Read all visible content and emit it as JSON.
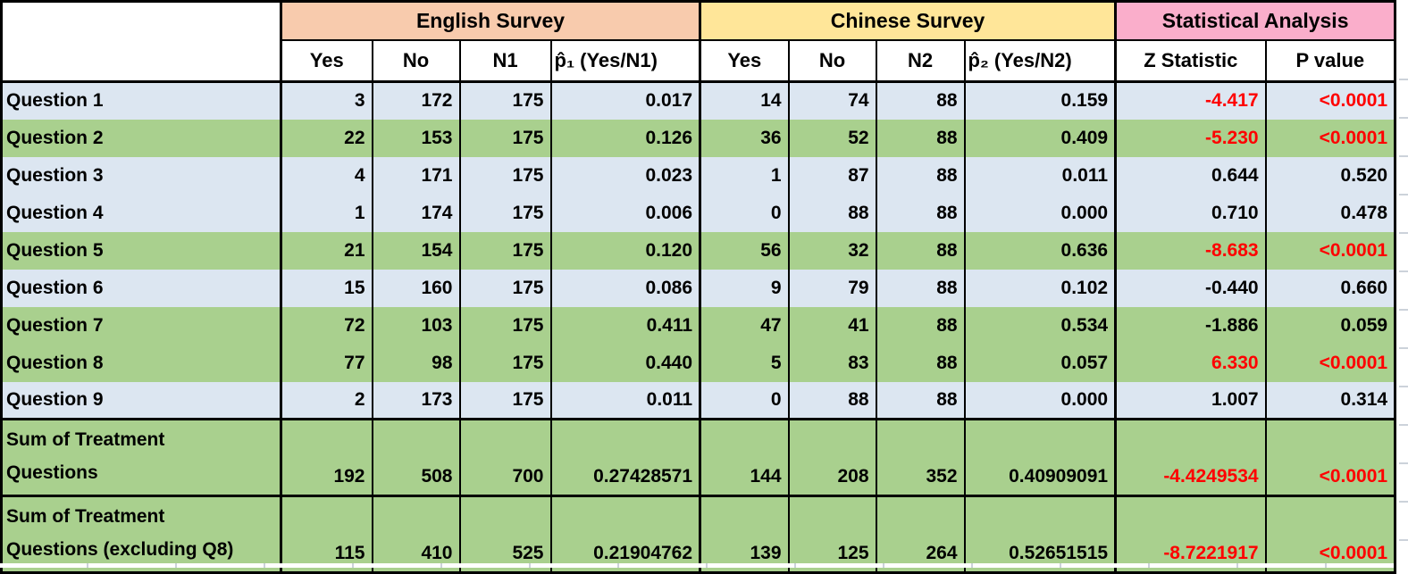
{
  "table": {
    "groups": [
      {
        "label": "English Survey",
        "color": "#F8CBAD"
      },
      {
        "label": "Chinese Survey",
        "color": "#FFE699"
      },
      {
        "label": "Statistical Analysis",
        "color": "#FAAECB"
      }
    ],
    "columns": [
      "Yes",
      "No",
      "N1",
      "p̂₁ (Yes/N1)",
      "Yes",
      "No",
      "N2",
      "p̂₂ (Yes/N2)",
      "Z Statistic",
      "P value"
    ],
    "column_keys": [
      "yes-english",
      "no-english",
      "n1",
      "p1-hat",
      "yes-chinese",
      "no-chinese",
      "n2",
      "p2-hat",
      "z-statistic",
      "p-value"
    ],
    "rows": [
      {
        "label": "Question 1",
        "band": "blue",
        "stat_red": true,
        "values": [
          "3",
          "172",
          "175",
          "0.017",
          "14",
          "74",
          "88",
          "0.159",
          "-4.417",
          "<0.0001"
        ]
      },
      {
        "label": "Question 2",
        "band": "green",
        "stat_red": true,
        "values": [
          "22",
          "153",
          "175",
          "0.126",
          "36",
          "52",
          "88",
          "0.409",
          "-5.230",
          "<0.0001"
        ]
      },
      {
        "label": "Question 3",
        "band": "blue",
        "stat_red": false,
        "values": [
          "4",
          "171",
          "175",
          "0.023",
          "1",
          "87",
          "88",
          "0.011",
          "0.644",
          "0.520"
        ]
      },
      {
        "label": "Question 4",
        "band": "blue",
        "stat_red": false,
        "values": [
          "1",
          "174",
          "175",
          "0.006",
          "0",
          "88",
          "88",
          "0.000",
          "0.710",
          "0.478"
        ]
      },
      {
        "label": "Question 5",
        "band": "green",
        "stat_red": true,
        "values": [
          "21",
          "154",
          "175",
          "0.120",
          "56",
          "32",
          "88",
          "0.636",
          "-8.683",
          "<0.0001"
        ]
      },
      {
        "label": "Question 6",
        "band": "blue",
        "stat_red": false,
        "values": [
          "15",
          "160",
          "175",
          "0.086",
          "9",
          "79",
          "88",
          "0.102",
          "-0.440",
          "0.660"
        ]
      },
      {
        "label": "Question 7",
        "band": "green",
        "stat_red": false,
        "values": [
          "72",
          "103",
          "175",
          "0.411",
          "47",
          "41",
          "88",
          "0.534",
          "-1.886",
          "0.059"
        ]
      },
      {
        "label": "Question 8",
        "band": "green",
        "stat_red": true,
        "values": [
          "77",
          "98",
          "175",
          "0.440",
          "5",
          "83",
          "88",
          "0.057",
          "6.330",
          "<0.0001"
        ]
      },
      {
        "label": "Question 9",
        "band": "blue",
        "stat_red": false,
        "values": [
          "2",
          "173",
          "175",
          "0.011",
          "0",
          "88",
          "88",
          "0.000",
          "1.007",
          "0.314"
        ]
      },
      {
        "label": "Sum of Treatment Questions",
        "lines": [
          "Sum of Treatment",
          "Questions"
        ],
        "band": "green",
        "stat_red": true,
        "values": [
          "192",
          "508",
          "700",
          "0.27428571",
          "144",
          "208",
          "352",
          "0.40909091",
          "-4.4249534",
          "<0.0001"
        ]
      },
      {
        "label": "Sum of Treatment Questions (excluding Q8)",
        "lines": [
          "Sum of Treatment",
          "Questions (excluding Q8)"
        ],
        "band": "green",
        "stat_red": true,
        "values": [
          "115",
          "410",
          "525",
          "0.21904762",
          "139",
          "125",
          "264",
          "0.52651515",
          "-8.7221917",
          "<0.0001"
        ]
      }
    ],
    "colors": {
      "english_header": "#F8CBAD",
      "chinese_header": "#FFE699",
      "statistical_header": "#FAAECB",
      "row_blue": "#DCE6F1",
      "row_green": "#A9D08E",
      "significant_text": "#FF0000",
      "border": "#000000"
    }
  }
}
